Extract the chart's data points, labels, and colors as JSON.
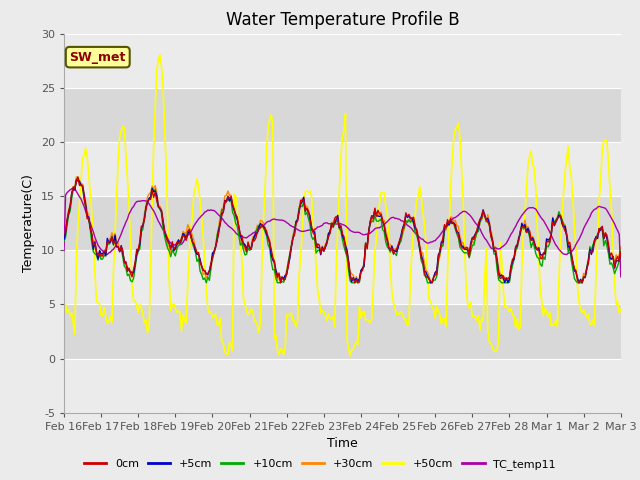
{
  "title": "Water Temperature Profile B",
  "xlabel": "Time",
  "ylabel": "Temperature(C)",
  "ylim": [
    -5,
    30
  ],
  "xlim": [
    0,
    15
  ],
  "xtick_labels": [
    "Feb 16",
    "Feb 17",
    "Feb 18",
    "Feb 19",
    "Feb 20",
    "Feb 21",
    "Feb 22",
    "Feb 23",
    "Feb 24",
    "Feb 25",
    "Feb 26",
    "Feb 27",
    "Feb 28",
    "Mar 1",
    "Mar 2",
    "Mar 3"
  ],
  "lines": {
    "0cm": {
      "color": "#cc0000",
      "lw": 1.0
    },
    "+5cm": {
      "color": "#0000cc",
      "lw": 1.0
    },
    "+10cm": {
      "color": "#00aa00",
      "lw": 1.0
    },
    "+30cm": {
      "color": "#ff8800",
      "lw": 1.0
    },
    "+50cm": {
      "color": "#ffff00",
      "lw": 1.2
    },
    "TC_temp11": {
      "color": "#aa00aa",
      "lw": 1.0
    }
  },
  "annotation": {
    "text": "SW_met",
    "facecolor": "#ffff99",
    "edgecolor": "#555500",
    "textcolor": "#8b0000",
    "fontsize": 9,
    "fontweight": "bold"
  },
  "bg_light": "#ebebeb",
  "bg_dark": "#d8d8d8",
  "title_fontsize": 12,
  "label_fontsize": 9,
  "tick_fontsize": 8
}
